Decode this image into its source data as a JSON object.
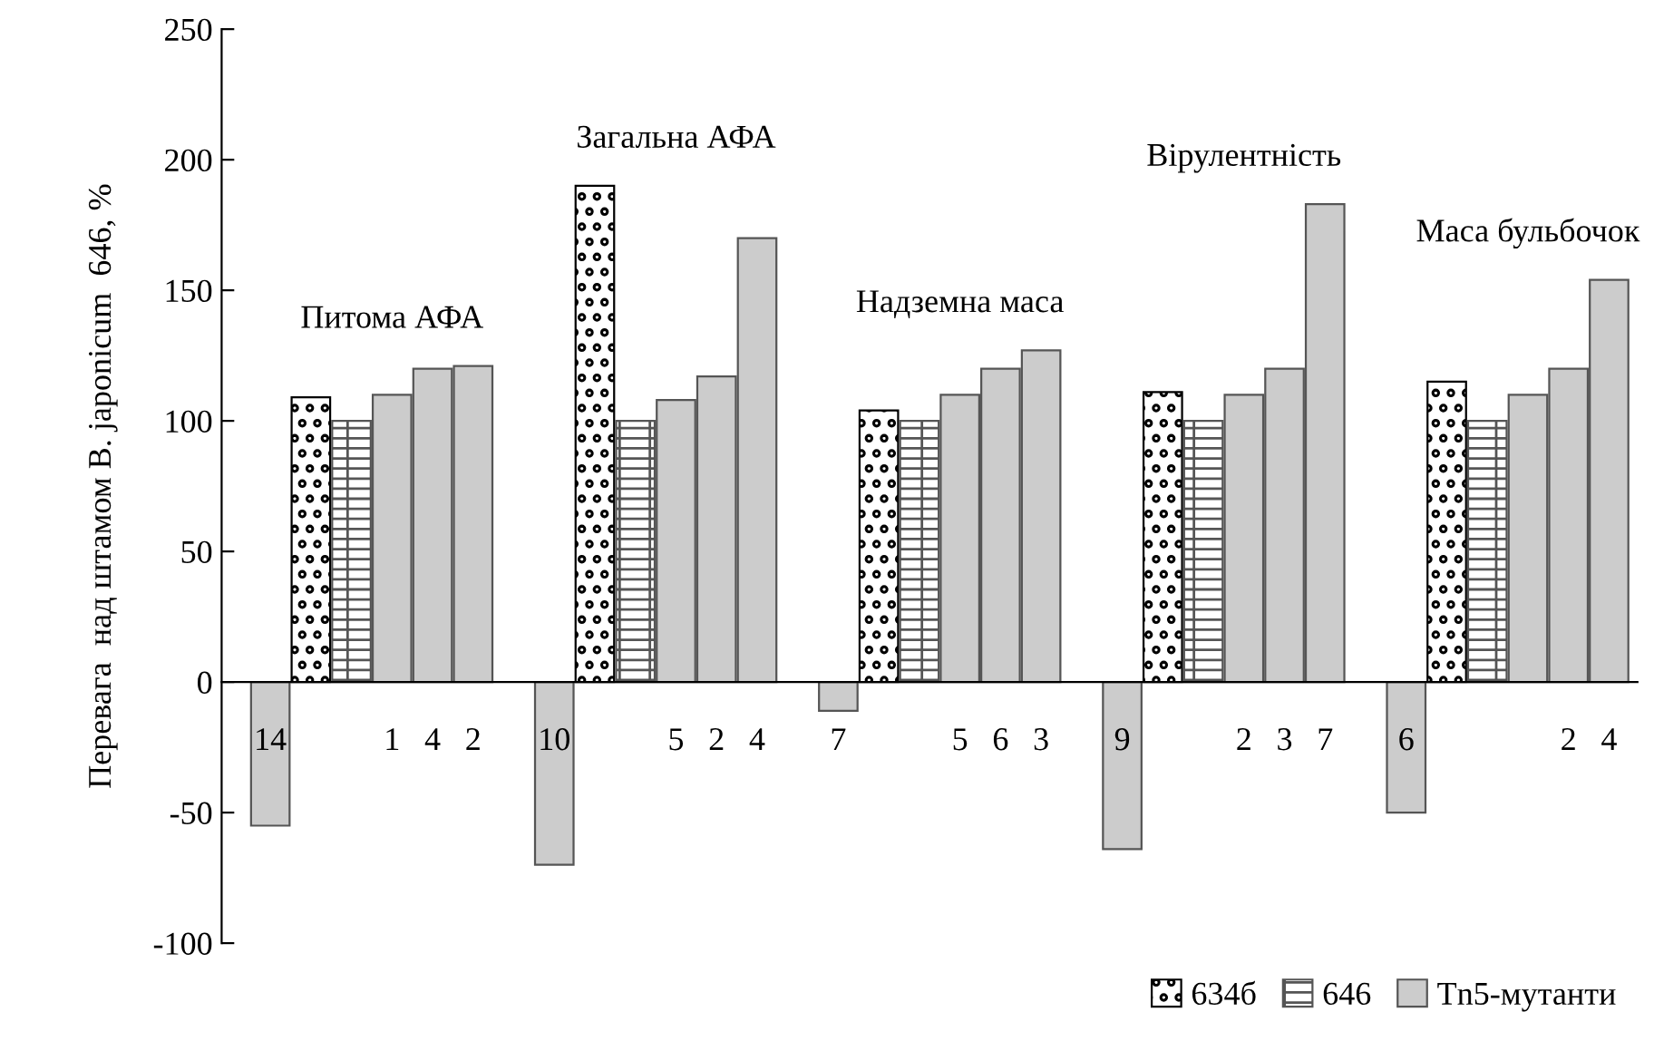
{
  "chart_data": {
    "type": "bar",
    "ylabel": "Перевага  над штамом B. japonicum  646, %",
    "categories": [
      "14",
      null,
      null,
      "1",
      "4",
      "2",
      null,
      "10",
      null,
      null,
      "5",
      "2",
      "4",
      null,
      "7",
      null,
      null,
      "5",
      "6",
      "3",
      null,
      "9",
      null,
      null,
      "2",
      "3",
      "7",
      null,
      "6",
      null,
      null,
      null,
      "2",
      "4"
    ],
    "series": [
      {
        "name": "634б",
        "color": "#000000",
        "values": [
          null,
          109,
          null,
          null,
          null,
          null,
          null,
          null,
          190,
          null,
          null,
          null,
          null,
          null,
          null,
          104,
          null,
          null,
          null,
          null,
          null,
          null,
          111,
          null,
          null,
          null,
          null,
          null,
          null,
          115,
          null,
          null,
          null,
          null
        ]
      },
      {
        "name": "646",
        "color": "#555555",
        "values": [
          null,
          null,
          100,
          null,
          null,
          null,
          null,
          null,
          null,
          100,
          null,
          null,
          null,
          null,
          null,
          null,
          100,
          null,
          null,
          null,
          null,
          null,
          null,
          100,
          null,
          null,
          null,
          null,
          null,
          null,
          100,
          null,
          null,
          null
        ]
      },
      {
        "name": "Tn5-мутанти",
        "color": "#cccccc",
        "values": [
          -55,
          null,
          null,
          110,
          120,
          121,
          null,
          -70,
          null,
          null,
          108,
          117,
          170,
          null,
          -11,
          null,
          null,
          110,
          120,
          127,
          null,
          -64,
          null,
          null,
          110,
          120,
          183,
          null,
          -50,
          null,
          null,
          110,
          120,
          154
        ]
      }
    ],
    "annotations": [
      "Питома АФА",
      "Загальна АФА",
      "Надземна маса",
      "Вірулентність",
      "Маса бульбочок"
    ],
    "ylim": [
      -100,
      250
    ],
    "yticks": [
      -100,
      -50,
      0,
      50,
      100,
      150,
      200,
      250
    ],
    "grid": false,
    "legend": "bottom right"
  }
}
